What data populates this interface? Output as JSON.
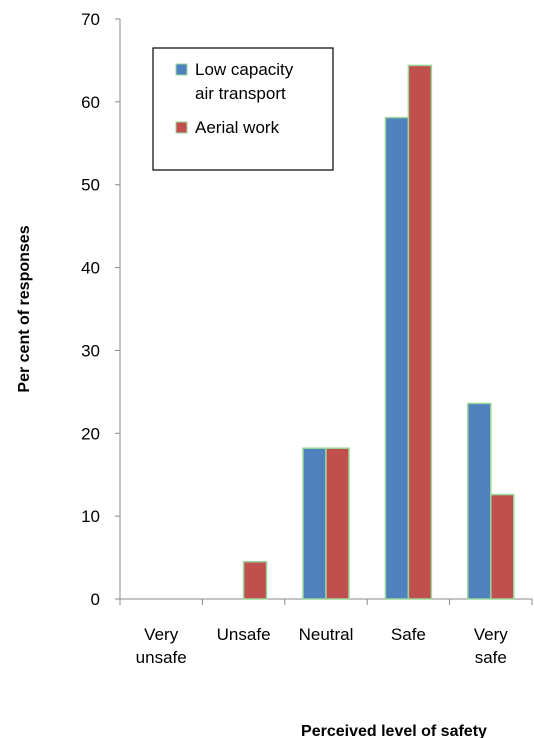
{
  "chart_data": {
    "type": "bar",
    "xlabel": "Perceived level of safety",
    "ylabel": "Per cent of responses",
    "ylim": [
      0,
      70
    ],
    "yticks": [
      0,
      10,
      20,
      30,
      40,
      50,
      60,
      70
    ],
    "categories": [
      [
        "Very",
        "unsafe"
      ],
      [
        "Unsafe"
      ],
      [
        "Neutral"
      ],
      [
        "Safe"
      ],
      [
        "Very",
        "safe"
      ]
    ],
    "series": [
      {
        "name_lines": [
          "Low capacity",
          "air transport"
        ],
        "color": "#4f81bd",
        "values": [
          0,
          0,
          18.2,
          58.1,
          23.6
        ]
      },
      {
        "name_lines": [
          "Aerial work"
        ],
        "color": "#c0504d",
        "values": [
          0,
          4.5,
          18.2,
          64.4,
          12.6
        ]
      }
    ],
    "bar_outline": "#9bd79b",
    "legend_position": "top-left"
  }
}
